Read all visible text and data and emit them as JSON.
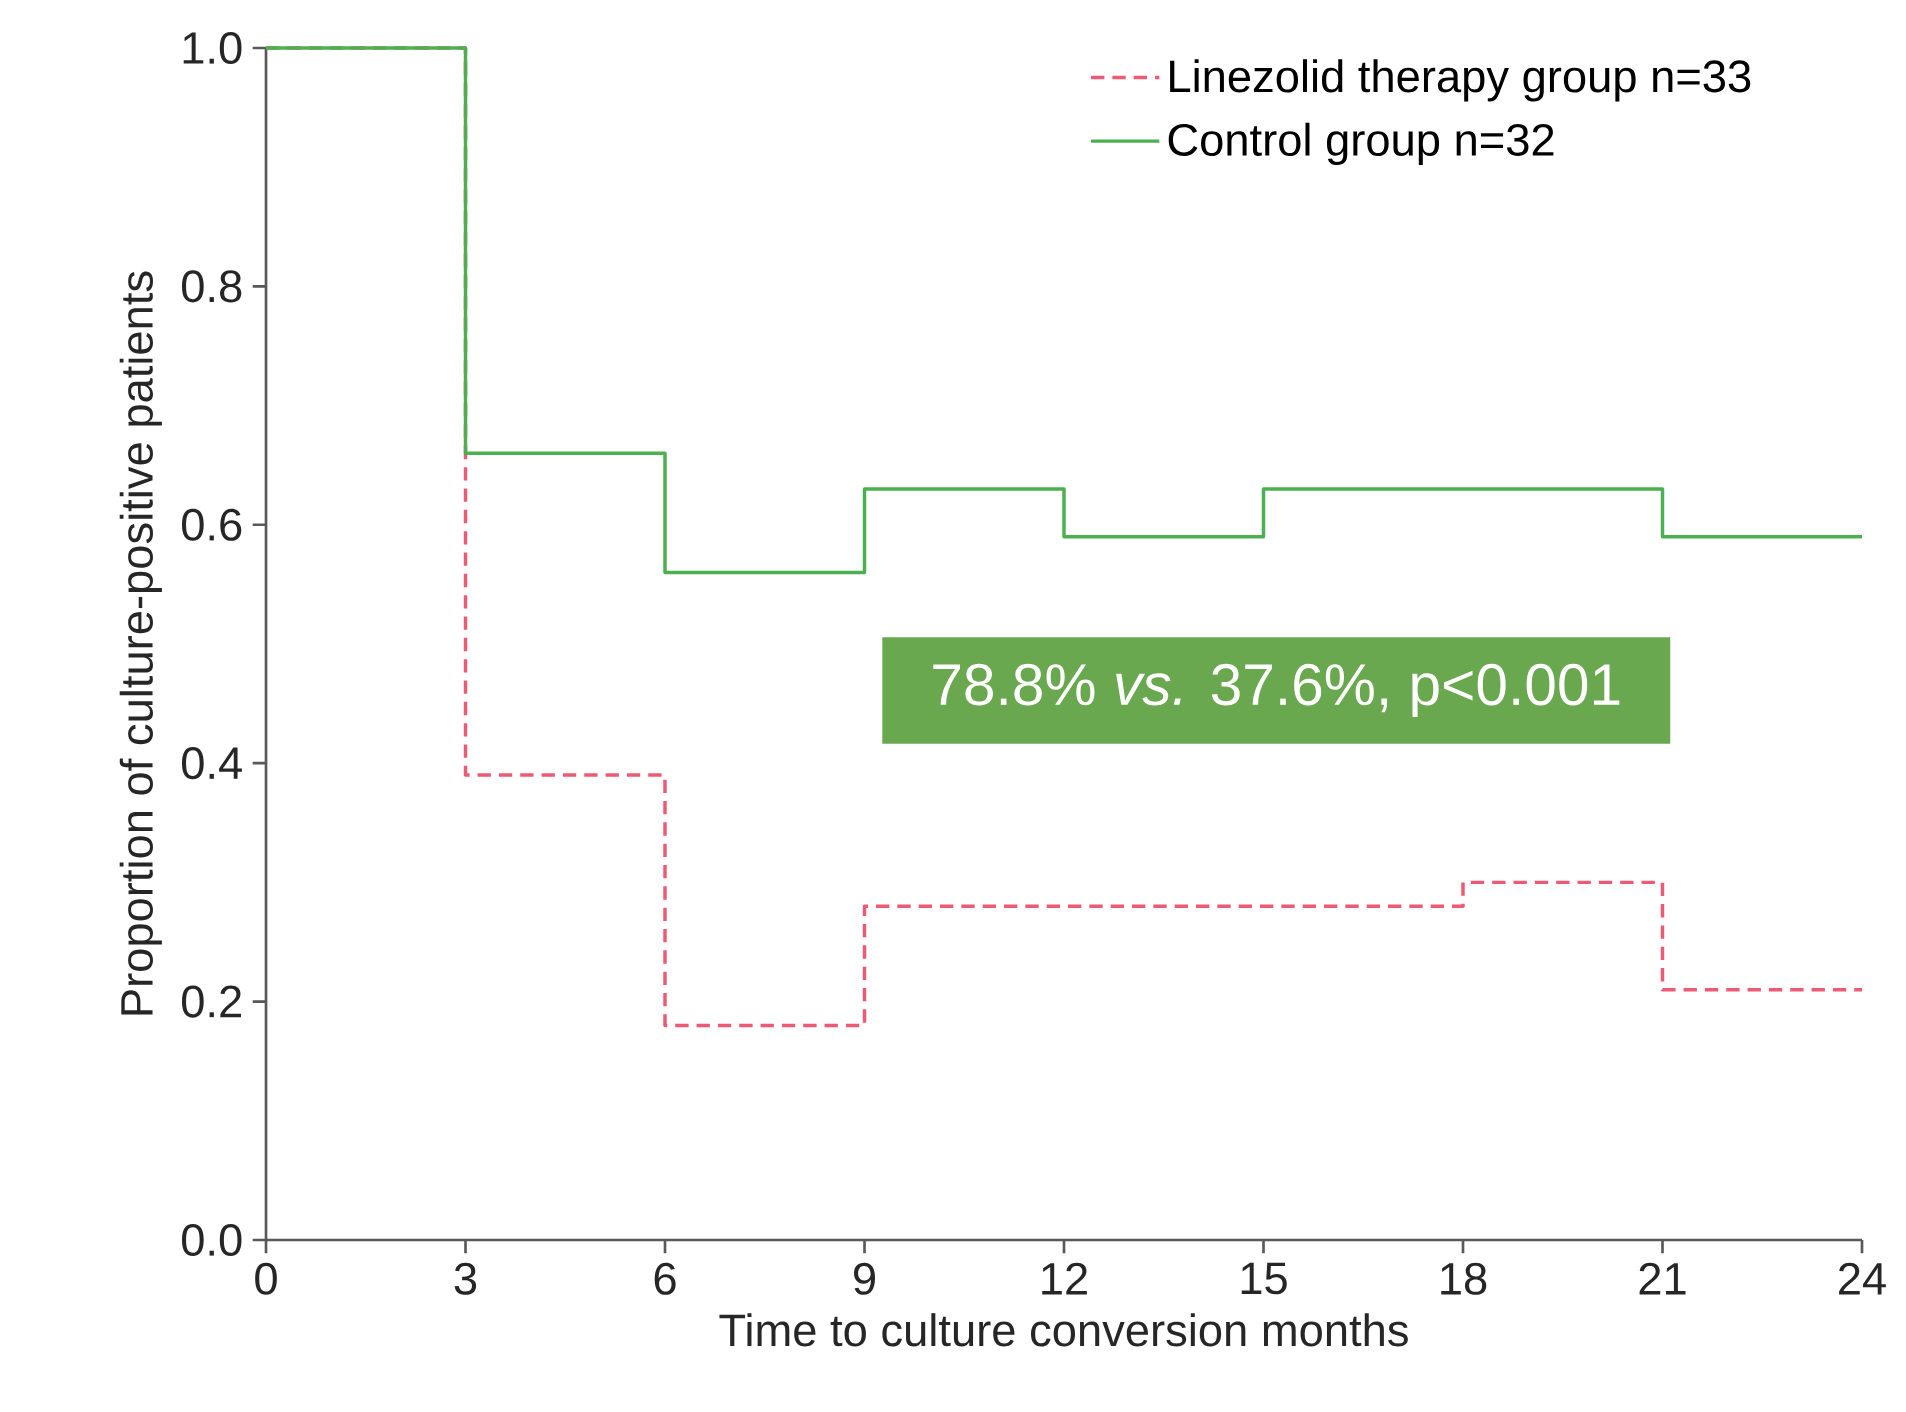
{
  "chart_data": {
    "type": "step",
    "xlabel": "Time to culture conversion months",
    "ylabel": "Proportion of culture-positive patients",
    "x": [
      0,
      3,
      6,
      9,
      12,
      15,
      18,
      21,
      24
    ],
    "series": [
      {
        "name": "Linezolid therapy group n=33",
        "color": "#ee5a74",
        "line_style": "dashed",
        "values": [
          1.0,
          0.39,
          0.18,
          0.28,
          0.28,
          0.28,
          0.3,
          0.21,
          0.21
        ]
      },
      {
        "name": "Control group n=32",
        "color": "#4caf50",
        "line_style": "solid",
        "values": [
          1.0,
          0.66,
          0.56,
          0.63,
          0.59,
          0.63,
          0.63,
          0.59,
          0.59
        ]
      }
    ],
    "xlim": [
      0,
      24
    ],
    "ylim": [
      0,
      1
    ],
    "xticks": [
      0,
      3,
      6,
      9,
      12,
      15,
      18,
      21,
      24
    ],
    "yticks": [
      {
        "value": 0,
        "label": "0.0"
      },
      {
        "value": 0.2,
        "label": "0.2"
      },
      {
        "value": 0.4,
        "label": "0.4"
      },
      {
        "value": 0.6,
        "label": "0.6"
      },
      {
        "value": 0.8,
        "label": "0.8"
      },
      {
        "value": 1,
        "label": "1.0"
      }
    ],
    "legend": "top right",
    "annotations": [
      "78.8% *vs.* 37.6%, p<0.001"
    ]
  }
}
